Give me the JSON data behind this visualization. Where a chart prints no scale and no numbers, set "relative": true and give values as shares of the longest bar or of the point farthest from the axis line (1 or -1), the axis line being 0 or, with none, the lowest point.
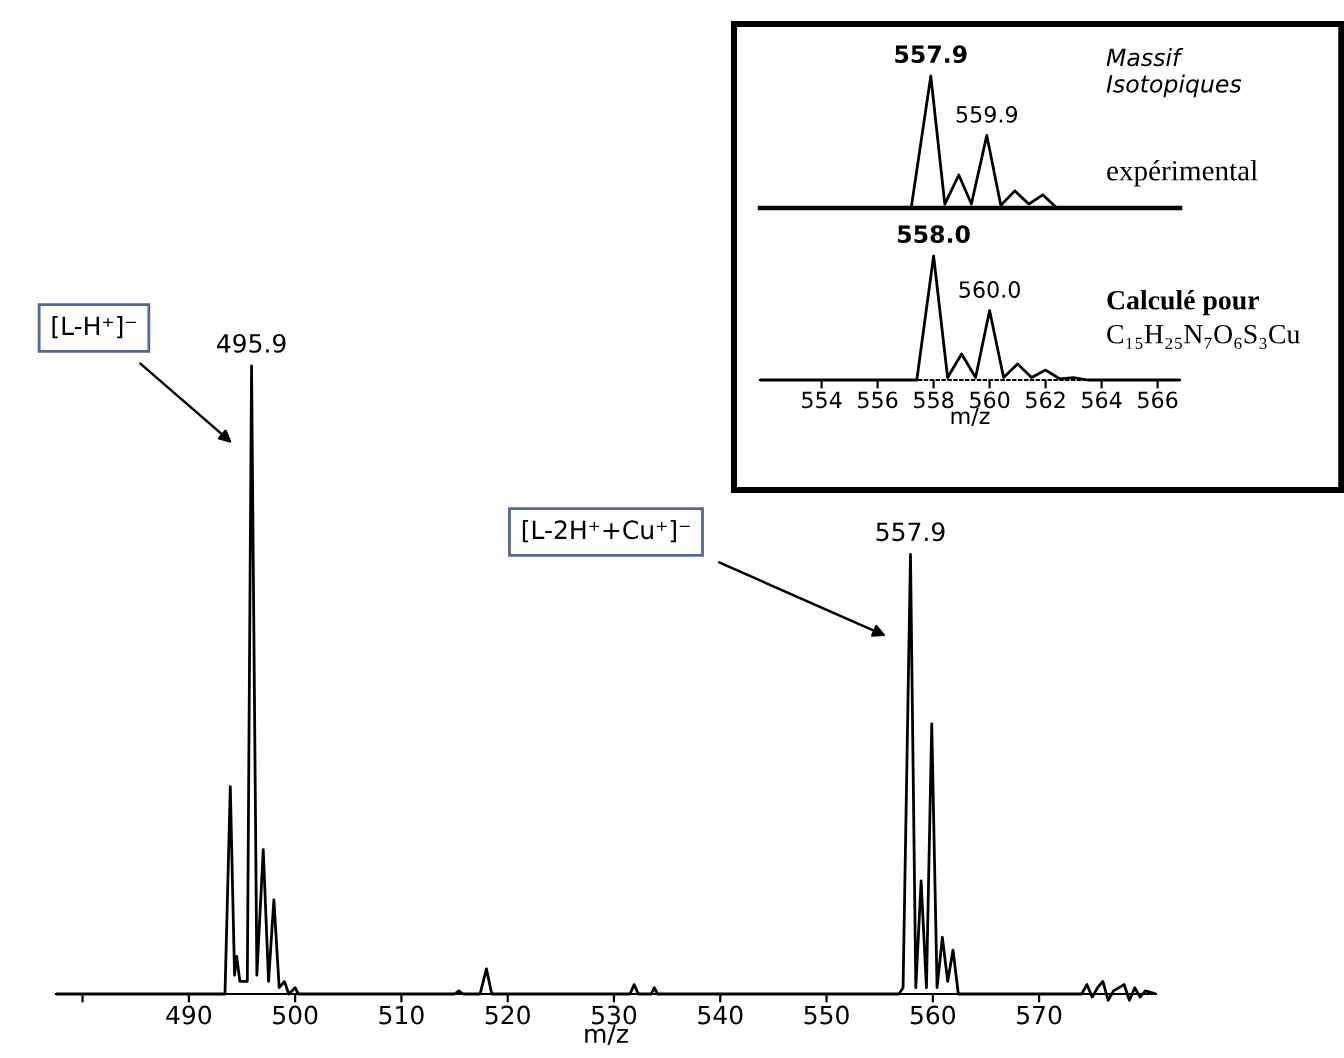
{
  "chart_data": [
    {
      "type": "line",
      "relative": true,
      "xlabel": "m/z",
      "xlim": [
        477.5,
        581
      ],
      "xticks": [
        {
          "value": 480,
          "label": null
        },
        490,
        500,
        510,
        520,
        530,
        540,
        550,
        560,
        570
      ],
      "tick_labels": "x",
      "grid": false,
      "legend": false,
      "marker": "none",
      "line_style": "solid",
      "x": [
        477.5,
        492,
        493.4,
        493.9,
        494.3,
        494.5,
        494.8,
        495.5,
        495.9,
        496.4,
        497.0,
        497.5,
        498.0,
        498.5,
        499.0,
        499.4,
        500.0,
        500.3,
        515,
        515.4,
        515.8,
        517.4,
        518.0,
        518.5,
        531.5,
        531.9,
        532.3,
        533.5,
        533.8,
        534.1,
        556.8,
        557.2,
        557.9,
        558.4,
        558.9,
        559.4,
        559.9,
        560.4,
        560.9,
        561.4,
        561.9,
        562.4,
        574,
        574.5,
        575,
        575.5,
        576,
        576.5,
        577,
        578,
        578.5,
        579,
        579.5,
        580,
        581
      ],
      "series": [
        {
          "color": "#000000",
          "values": [
            0,
            0,
            0,
            0.33,
            0.03,
            0.06,
            0.02,
            0.02,
            1.0,
            0.03,
            0.23,
            0.02,
            0.15,
            0.01,
            0.02,
            0,
            0.01,
            0,
            0,
            0.005,
            0,
            0,
            0.04,
            0,
            0,
            0.015,
            0,
            0,
            0.01,
            0,
            0,
            0.01,
            0.7,
            0.01,
            0.18,
            0.01,
            0.43,
            0.01,
            0.09,
            0.02,
            0.07,
            0,
            0,
            0.015,
            -0.005,
            0.01,
            0.02,
            -0.01,
            0.005,
            0.015,
            -0.01,
            0.01,
            -0.005,
            0.005,
            0
          ]
        }
      ],
      "annotations": [
        "[L-H⁺]⁻",
        "[L-2H⁺+Cu⁺]⁻",
        {
          "text": "495.9",
          "x": 495.9,
          "y": 1.0
        },
        {
          "text": "557.9",
          "x": 557.9,
          "y": 0.7
        }
      ]
    },
    {
      "type": "line",
      "relative": true,
      "xlim": [
        551.8,
        566.8
      ],
      "tick_labels": false,
      "grid": false,
      "legend": false,
      "marker": "none",
      "line_style": "solid",
      "x": [
        551.8,
        557.2,
        557.9,
        558.4,
        558.9,
        559.35,
        559.9,
        560.4,
        560.9,
        561.4,
        561.9,
        562.4,
        566.8
      ],
      "series": [
        {
          "color": "#000000",
          "values": [
            0,
            0,
            1.0,
            0.03,
            0.25,
            0.03,
            0.55,
            0.02,
            0.13,
            0.03,
            0.1,
            0,
            0
          ]
        }
      ],
      "annotations": [
        {
          "text": "557.9",
          "x": 557.9,
          "y": 1.0
        },
        {
          "text": "559.9",
          "x": 559.9,
          "y": 0.55
        },
        "Massif\nIsotopiques",
        "expérimental"
      ]
    },
    {
      "type": "line",
      "relative": true,
      "xlabel": "m/z",
      "xlim": [
        551.8,
        566.8
      ],
      "xticks": [
        554,
        556,
        558,
        560,
        562,
        564,
        566
      ],
      "tick_labels": "x",
      "grid": false,
      "legend": false,
      "marker": "none",
      "line_style": "solid",
      "x": [
        551.8,
        557.4,
        558.0,
        558.5,
        559.0,
        559.5,
        560.0,
        560.5,
        561.0,
        561.5,
        562.0,
        562.5,
        563.0,
        563.5,
        566.8
      ],
      "series": [
        {
          "color": "#000000",
          "values": [
            0,
            0,
            1.0,
            0.02,
            0.21,
            0.02,
            0.56,
            0.02,
            0.13,
            0.02,
            0.08,
            0.01,
            0.02,
            0,
            0
          ]
        }
      ],
      "annotations": [
        {
          "text": "558.0",
          "x": 558.0,
          "y": 1.0
        },
        {
          "text": "560.0",
          "x": 560.0,
          "y": 0.56
        },
        "Calculé pour",
        "C₁₅H₂₅N₇O₆S₃Cu"
      ]
    }
  ]
}
